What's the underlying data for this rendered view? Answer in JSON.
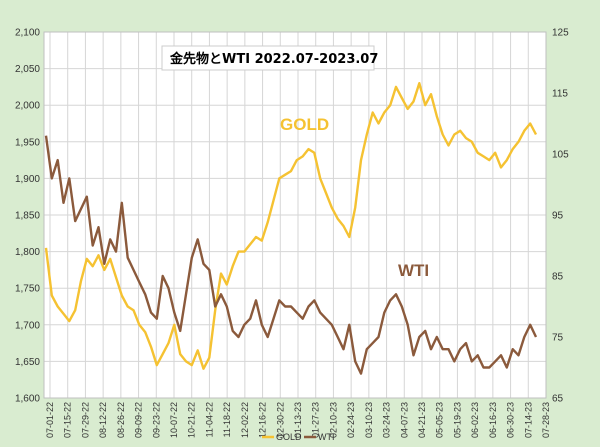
{
  "chart_data": {
    "type": "line",
    "title": "金先物とWTI  2022.07-2023.07",
    "y_left": {
      "min": 1600,
      "max": 2100,
      "step": 50,
      "ticks": [
        "1,600",
        "1,650",
        "1,700",
        "1,750",
        "1,800",
        "1,850",
        "1,900",
        "1,950",
        "2,000",
        "2,050",
        "2,100"
      ]
    },
    "y_right": {
      "min": 65,
      "max": 125,
      "step": 10,
      "ticks": [
        "65",
        "75",
        "85",
        "95",
        "105",
        "115",
        "125"
      ]
    },
    "x_ticks": [
      "07-01-22",
      "07-15-22",
      "07-29-22",
      "08-12-22",
      "08-26-22",
      "09-09-22",
      "09-23-22",
      "10-07-22",
      "10-21-22",
      "11-04-22",
      "11-18-22",
      "12-02-22",
      "12-16-22",
      "12-30-22",
      "01-13-23",
      "01-27-23",
      "02-10-23",
      "02-24-23",
      "03-10-23",
      "03-24-23",
      "04-07-23",
      "04-21-23",
      "05-05-23",
      "05-19-23",
      "06-02-23",
      "06-16-23",
      "06-30-23",
      "07-14-23",
      "07-28-23"
    ],
    "series": [
      {
        "name": "GOLD",
        "color": "#f5c232",
        "axis": "left",
        "values": [
          1805,
          1740,
          1725,
          1715,
          1705,
          1720,
          1760,
          1790,
          1780,
          1795,
          1775,
          1790,
          1765,
          1740,
          1725,
          1720,
          1700,
          1690,
          1670,
          1645,
          1660,
          1675,
          1700,
          1660,
          1650,
          1645,
          1665,
          1640,
          1655,
          1720,
          1770,
          1755,
          1780,
          1800,
          1800,
          1810,
          1820,
          1815,
          1840,
          1870,
          1900,
          1905,
          1910,
          1925,
          1930,
          1940,
          1935,
          1900,
          1880,
          1860,
          1845,
          1835,
          1820,
          1860,
          1925,
          1960,
          1990,
          1975,
          1990,
          2000,
          2025,
          2010,
          1995,
          2005,
          2030,
          2000,
          2015,
          1985,
          1960,
          1945,
          1960,
          1965,
          1955,
          1950,
          1935,
          1930,
          1925,
          1935,
          1915,
          1925,
          1940,
          1950,
          1965,
          1975,
          1960
        ]
      },
      {
        "name": "WTI",
        "color": "#8b5a3c",
        "axis": "right",
        "values": [
          108,
          101,
          104,
          97,
          101,
          94,
          96,
          98,
          90,
          93,
          87,
          91,
          89,
          97,
          88,
          86,
          84,
          82,
          79,
          78,
          85,
          83,
          79,
          76,
          82,
          88,
          91,
          87,
          86,
          80,
          82,
          80,
          76,
          75,
          77,
          78,
          81,
          77,
          75,
          78,
          81,
          80,
          80,
          79,
          78,
          80,
          81,
          79,
          78,
          77,
          75,
          73,
          77,
          71,
          69,
          73,
          74,
          75,
          79,
          81,
          82,
          80,
          77,
          72,
          75,
          76,
          73,
          75,
          73,
          73,
          71,
          73,
          74,
          71,
          72,
          70,
          70,
          71,
          72,
          70,
          73,
          72,
          75,
          77,
          75
        ]
      }
    ],
    "annotations": [
      {
        "text": "GOLD",
        "color": "#f5c232"
      },
      {
        "text": "WTI",
        "color": "#8b5a3c"
      }
    ],
    "legend": {
      "placement": "bottom",
      "items": [
        "GOLD",
        "WTI"
      ]
    },
    "grid": true
  }
}
